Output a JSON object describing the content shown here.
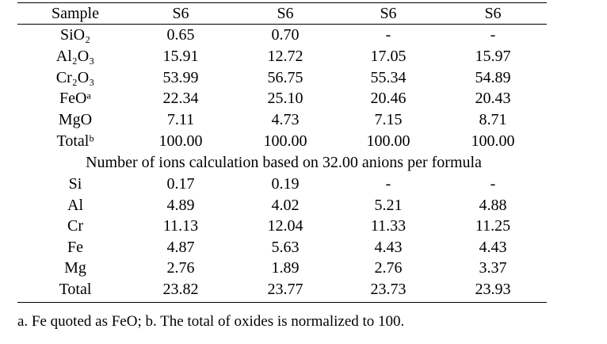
{
  "table": {
    "header": [
      "Sample",
      "S6",
      "S6",
      "S6",
      "S6"
    ],
    "oxide_rows": [
      [
        "SiO₂",
        "0.65",
        "0.70",
        "-",
        "-"
      ],
      [
        "Al₂O₃",
        "15.91",
        "12.72",
        "17.05",
        "15.97"
      ],
      [
        "Cr₂O₃",
        "53.99",
        "56.75",
        "55.34",
        "54.89"
      ],
      [
        "FeOᵃ",
        "22.34",
        "25.10",
        "20.46",
        "20.43"
      ],
      [
        "MgO",
        "7.11",
        "4.73",
        "7.15",
        "8.71"
      ],
      [
        "Totalᵇ",
        "100.00",
        "100.00",
        "100.00",
        "100.00"
      ]
    ],
    "section_title": "Number of ions calculation based on 32.00 anions per formula",
    "ion_rows": [
      [
        "Si",
        "0.17",
        "0.19",
        "-",
        "-"
      ],
      [
        "Al",
        "4.89",
        "4.02",
        "5.21",
        "4.88"
      ],
      [
        "Cr",
        "11.13",
        "12.04",
        "11.33",
        "11.25"
      ],
      [
        "Fe",
        "4.87",
        "5.63",
        "4.43",
        "4.43"
      ],
      [
        "Mg",
        "2.76",
        "1.89",
        "2.76",
        "3.37"
      ],
      [
        "Total",
        "23.82",
        "23.77",
        "23.73",
        "23.93"
      ]
    ],
    "footnote": "a. Fe quoted as FeO; b. The total of oxides is normalized to 100."
  }
}
